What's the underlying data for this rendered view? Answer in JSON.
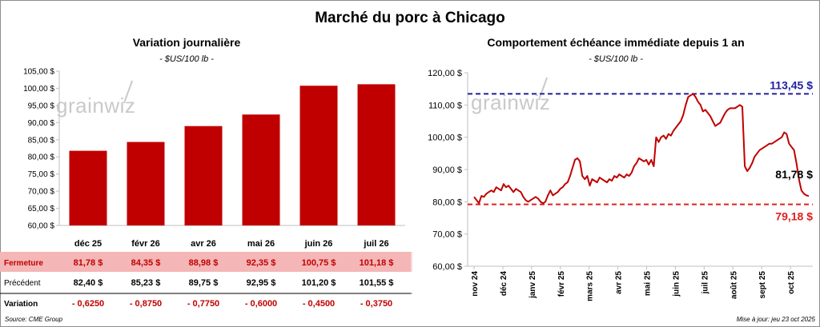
{
  "main_title": "Marché du porc à Chicago",
  "source": "Source: CME Group",
  "updated": "Mise à jour: jeu 23 oct 2025",
  "watermark": "grainwiz",
  "colors": {
    "bar": "#c00000",
    "line": "#c00000",
    "high": "#1f1fa0",
    "low": "#e02020",
    "highlight_row": "#f4b6b6"
  },
  "chart_data": [
    {
      "type": "bar",
      "title": "Variation journalière",
      "subtitle": "- $US/100 lb -",
      "categories": [
        "déc 25",
        "févr 26",
        "avr 26",
        "mai 26",
        "juin 26",
        "juil 26"
      ],
      "values": [
        81.78,
        84.35,
        88.98,
        92.35,
        100.75,
        101.18
      ],
      "ylim": [
        60,
        105
      ],
      "yticks": [
        "60,00 $",
        "65,00 $",
        "70,00 $",
        "75,00 $",
        "80,00 $",
        "85,00 $",
        "90,00 $",
        "95,00 $",
        "100,00 $",
        "105,00 $"
      ],
      "table": {
        "rows": [
          {
            "label": "Fermeture",
            "cells": [
              "81,78  $",
              "84,35  $",
              "88,98  $",
              "92,35  $",
              "100,75  $",
              "101,18  $"
            ]
          },
          {
            "label": "Précédent",
            "cells": [
              "82,40  $",
              "85,23  $",
              "89,75  $",
              "92,95  $",
              "101,20  $",
              "101,55  $"
            ]
          },
          {
            "label": "Variation",
            "cells": [
              "- 0,6250",
              "- 0,8750",
              "- 0,7750",
              "- 0,6000",
              "- 0,4500",
              "- 0,3750"
            ]
          }
        ]
      }
    },
    {
      "type": "line",
      "title": "Comportement  échéance immédiate depuis 1 an",
      "subtitle": "- $US/100 lb -",
      "ylim": [
        60,
        120
      ],
      "yticks": [
        "60,00 $",
        "70,00 $",
        "80,00 $",
        "90,00 $",
        "100,00 $",
        "110,00 $",
        "120,00 $"
      ],
      "xticks": [
        "nov 24",
        "déc 24",
        "janv 25",
        "févr 25",
        "mars 25",
        "avr 25",
        "mai 25",
        "juin 25",
        "juil 25",
        "août 25",
        "sept 25",
        "oct 25"
      ],
      "high": {
        "value": 113.45,
        "label": "113,45 $"
      },
      "low": {
        "value": 79.18,
        "label": "79,18 $"
      },
      "last": {
        "value": 81.78,
        "label": "81,78 $"
      },
      "series": [
        {
          "values": [
            81.5,
            80.5,
            79.5,
            81.8,
            81.5,
            82.5,
            83.0,
            83.5,
            83.0,
            84.5,
            84.0,
            83.5,
            85.5,
            84.5,
            85.0,
            84.0,
            83.0,
            84.0,
            83.5,
            83.0,
            81.5,
            80.5,
            80.0,
            80.5,
            81.0,
            81.5,
            81.0,
            80.0,
            79.5,
            80.0,
            82.0,
            83.5,
            82.0,
            82.5,
            83.0,
            84.0,
            84.5,
            85.5,
            86.0,
            88.0,
            90.5,
            93.0,
            93.5,
            92.5,
            88.0,
            87.0,
            88.0,
            85.0,
            87.0,
            86.5,
            86.0,
            87.5,
            87.0,
            86.5,
            86.0,
            87.0,
            86.5,
            88.0,
            87.5,
            88.5,
            88.0,
            87.5,
            88.5,
            88.0,
            89.0,
            91.0,
            92.0,
            93.5,
            93.0,
            92.5,
            93.0,
            91.5,
            93.0,
            91.0,
            100.0,
            98.5,
            100.0,
            100.5,
            99.5,
            101.0,
            100.5,
            102.0,
            103.0,
            104.0,
            105.0,
            107.0,
            110.0,
            112.5,
            113.0,
            113.45,
            112.5,
            111.0,
            110.0,
            108.0,
            108.5,
            107.5,
            106.5,
            105.0,
            103.5,
            104.0,
            104.5,
            106.0,
            107.5,
            108.5,
            109.0,
            109.0,
            109.0,
            109.5,
            110.0,
            109.5,
            91.0,
            89.5,
            90.5,
            92.0,
            94.0,
            95.0,
            96.0,
            96.5,
            97.0,
            97.5,
            98.0,
            98.0,
            98.5,
            99.0,
            99.5,
            100.0,
            101.5,
            101.0,
            98.0,
            97.0,
            96.0,
            92.0,
            87.0,
            83.5,
            82.5,
            82.0,
            81.78
          ]
        }
      ]
    }
  ]
}
